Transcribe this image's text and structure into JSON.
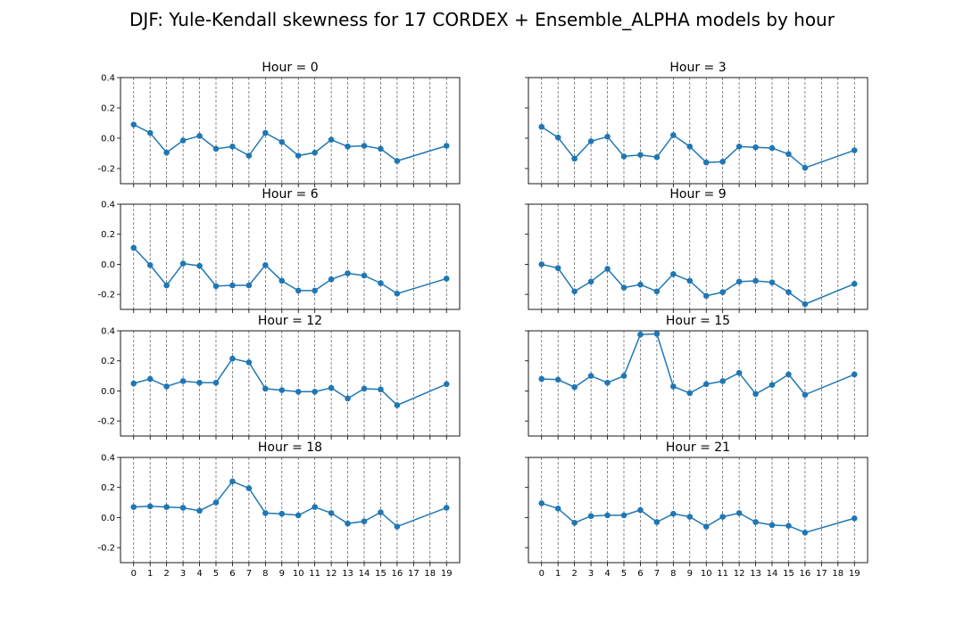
{
  "figure": {
    "title": "DJF: Yule-Kendall skewness for 17 CORDEX + Ensemble_ALPHA models by hour"
  },
  "chart_data": [
    {
      "type": "line",
      "title": "Hour = 0",
      "x": [
        0,
        1,
        2,
        3,
        4,
        5,
        6,
        7,
        8,
        9,
        10,
        11,
        12,
        13,
        14,
        15,
        16,
        19
      ],
      "y": [
        0.09,
        0.035,
        -0.095,
        -0.015,
        0.015,
        -0.07,
        -0.055,
        -0.115,
        0.035,
        -0.025,
        -0.115,
        -0.095,
        -0.01,
        -0.055,
        -0.05,
        -0.07,
        -0.15,
        -0.05
      ],
      "xticks": [
        0,
        1,
        2,
        3,
        4,
        5,
        6,
        7,
        8,
        9,
        10,
        11,
        12,
        13,
        14,
        15,
        16,
        17,
        18,
        19
      ],
      "yticks": [
        -0.2,
        0.0,
        0.2,
        0.4
      ],
      "ylim": [
        -0.3,
        0.4
      ],
      "xlim": [
        -0.8,
        19.8
      ],
      "grid": "vertical dashed",
      "color": "#1f77b4"
    },
    {
      "type": "line",
      "title": "Hour = 3",
      "x": [
        0,
        1,
        2,
        3,
        4,
        5,
        6,
        7,
        8,
        9,
        10,
        11,
        12,
        13,
        14,
        15,
        16,
        19
      ],
      "y": [
        0.075,
        0.005,
        -0.135,
        -0.02,
        0.01,
        -0.12,
        -0.11,
        -0.125,
        0.02,
        -0.055,
        -0.16,
        -0.155,
        -0.055,
        -0.06,
        -0.065,
        -0.105,
        -0.195,
        -0.08
      ],
      "xticks": [
        0,
        1,
        2,
        3,
        4,
        5,
        6,
        7,
        8,
        9,
        10,
        11,
        12,
        13,
        14,
        15,
        16,
        17,
        18,
        19
      ],
      "yticks": [
        -0.2,
        0.0,
        0.2,
        0.4
      ],
      "ylim": [
        -0.3,
        0.4
      ],
      "xlim": [
        -0.8,
        19.8
      ],
      "grid": "vertical dashed",
      "color": "#1f77b4"
    },
    {
      "type": "line",
      "title": "Hour = 6",
      "x": [
        0,
        1,
        2,
        3,
        4,
        5,
        6,
        7,
        8,
        9,
        10,
        11,
        12,
        13,
        14,
        15,
        16,
        19
      ],
      "y": [
        0.11,
        -0.005,
        -0.14,
        0.005,
        -0.01,
        -0.145,
        -0.14,
        -0.14,
        -0.005,
        -0.11,
        -0.175,
        -0.175,
        -0.1,
        -0.06,
        -0.075,
        -0.125,
        -0.195,
        -0.095
      ],
      "xticks": [
        0,
        1,
        2,
        3,
        4,
        5,
        6,
        7,
        8,
        9,
        10,
        11,
        12,
        13,
        14,
        15,
        16,
        17,
        18,
        19
      ],
      "yticks": [
        -0.2,
        0.0,
        0.2,
        0.4
      ],
      "ylim": [
        -0.3,
        0.4
      ],
      "xlim": [
        -0.8,
        19.8
      ],
      "grid": "vertical dashed",
      "color": "#1f77b4"
    },
    {
      "type": "line",
      "title": "Hour = 9",
      "x": [
        0,
        1,
        2,
        3,
        4,
        5,
        6,
        7,
        8,
        9,
        10,
        11,
        12,
        13,
        14,
        15,
        16,
        19
      ],
      "y": [
        0.0,
        -0.025,
        -0.18,
        -0.115,
        -0.03,
        -0.155,
        -0.135,
        -0.18,
        -0.065,
        -0.11,
        -0.21,
        -0.185,
        -0.115,
        -0.11,
        -0.12,
        -0.185,
        -0.265,
        -0.13
      ],
      "xticks": [
        0,
        1,
        2,
        3,
        4,
        5,
        6,
        7,
        8,
        9,
        10,
        11,
        12,
        13,
        14,
        15,
        16,
        17,
        18,
        19
      ],
      "yticks": [
        -0.2,
        0.0,
        0.2,
        0.4
      ],
      "ylim": [
        -0.3,
        0.4
      ],
      "xlim": [
        -0.8,
        19.8
      ],
      "grid": "vertical dashed",
      "color": "#1f77b4"
    },
    {
      "type": "line",
      "title": "Hour = 12",
      "x": [
        0,
        1,
        2,
        3,
        4,
        5,
        6,
        7,
        8,
        9,
        10,
        11,
        12,
        13,
        14,
        15,
        16,
        19
      ],
      "y": [
        0.05,
        0.08,
        0.03,
        0.065,
        0.055,
        0.055,
        0.215,
        0.19,
        0.015,
        0.005,
        -0.005,
        -0.005,
        0.02,
        -0.05,
        0.015,
        0.01,
        -0.095,
        0.045
      ],
      "xticks": [
        0,
        1,
        2,
        3,
        4,
        5,
        6,
        7,
        8,
        9,
        10,
        11,
        12,
        13,
        14,
        15,
        16,
        17,
        18,
        19
      ],
      "yticks": [
        -0.2,
        0.0,
        0.2,
        0.4
      ],
      "ylim": [
        -0.3,
        0.4
      ],
      "xlim": [
        -0.8,
        19.8
      ],
      "grid": "vertical dashed",
      "color": "#1f77b4"
    },
    {
      "type": "line",
      "title": "Hour = 15",
      "x": [
        0,
        1,
        2,
        3,
        4,
        5,
        6,
        7,
        8,
        9,
        10,
        11,
        12,
        13,
        14,
        15,
        16,
        19
      ],
      "y": [
        0.08,
        0.075,
        0.025,
        0.1,
        0.055,
        0.1,
        0.375,
        0.38,
        0.03,
        -0.015,
        0.045,
        0.065,
        0.12,
        -0.02,
        0.04,
        0.11,
        -0.025,
        0.11
      ],
      "xticks": [
        0,
        1,
        2,
        3,
        4,
        5,
        6,
        7,
        8,
        9,
        10,
        11,
        12,
        13,
        14,
        15,
        16,
        17,
        18,
        19
      ],
      "yticks": [
        -0.2,
        0.0,
        0.2,
        0.4
      ],
      "ylim": [
        -0.3,
        0.4
      ],
      "xlim": [
        -0.8,
        19.8
      ],
      "grid": "vertical dashed",
      "color": "#1f77b4"
    },
    {
      "type": "line",
      "title": "Hour = 18",
      "x": [
        0,
        1,
        2,
        3,
        4,
        5,
        6,
        7,
        8,
        9,
        10,
        11,
        12,
        13,
        14,
        15,
        16,
        19
      ],
      "y": [
        0.07,
        0.075,
        0.07,
        0.065,
        0.045,
        0.1,
        0.24,
        0.195,
        0.03,
        0.025,
        0.015,
        0.07,
        0.03,
        -0.04,
        -0.025,
        0.035,
        -0.06,
        0.065
      ],
      "xticks": [
        0,
        1,
        2,
        3,
        4,
        5,
        6,
        7,
        8,
        9,
        10,
        11,
        12,
        13,
        14,
        15,
        16,
        17,
        18,
        19
      ],
      "yticks": [
        -0.2,
        0.0,
        0.2,
        0.4
      ],
      "ylim": [
        -0.3,
        0.4
      ],
      "xlim": [
        -0.8,
        19.8
      ],
      "grid": "vertical dashed",
      "color": "#1f77b4"
    },
    {
      "type": "line",
      "title": "Hour = 21",
      "x": [
        0,
        1,
        2,
        3,
        4,
        5,
        6,
        7,
        8,
        9,
        10,
        11,
        12,
        13,
        14,
        15,
        16,
        19
      ],
      "y": [
        0.095,
        0.06,
        -0.035,
        0.01,
        0.015,
        0.015,
        0.05,
        -0.03,
        0.025,
        0.005,
        -0.06,
        0.005,
        0.03,
        -0.03,
        -0.05,
        -0.055,
        -0.1,
        -0.005
      ],
      "xticks": [
        0,
        1,
        2,
        3,
        4,
        5,
        6,
        7,
        8,
        9,
        10,
        11,
        12,
        13,
        14,
        15,
        16,
        17,
        18,
        19
      ],
      "yticks": [
        -0.2,
        0.0,
        0.2,
        0.4
      ],
      "ylim": [
        -0.3,
        0.4
      ],
      "xlim": [
        -0.8,
        19.8
      ],
      "grid": "vertical dashed",
      "color": "#1f77b4"
    }
  ]
}
